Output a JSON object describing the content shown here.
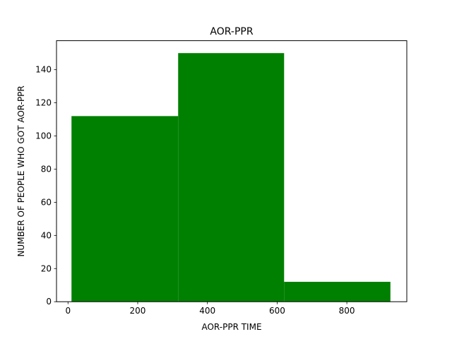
{
  "chart_data": {
    "type": "histogram",
    "title": "AOR-PPR",
    "xlabel": "AOR-PPR TIME",
    "ylabel": "NUMBER OF PEOPLE WHO GOT AOR-PPR",
    "bins": [
      {
        "x_start": 10,
        "x_end": 316,
        "value": 112
      },
      {
        "x_start": 316,
        "x_end": 620,
        "value": 150
      },
      {
        "x_start": 620,
        "x_end": 925,
        "value": 12
      }
    ],
    "bar_color": "#008000",
    "xlim": [
      -33,
      972
    ],
    "ylim": [
      0,
      157.5
    ],
    "xticks": [
      0,
      200,
      400,
      600,
      800
    ],
    "yticks": [
      0,
      20,
      40,
      60,
      80,
      100,
      120,
      140
    ],
    "grid": false,
    "legend": null
  }
}
